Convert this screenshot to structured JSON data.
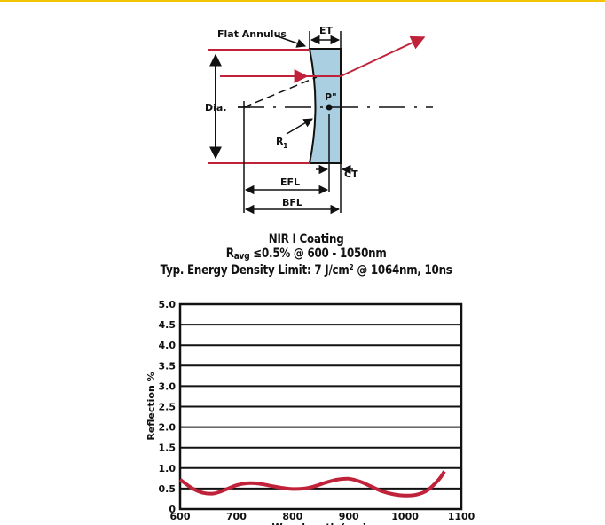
{
  "diagram": {
    "labels": {
      "flat_annulus": "Flat Annulus",
      "et": "ET",
      "dia": "Dia.",
      "p2": "P\"",
      "r1": "R",
      "r1_sub": "1",
      "ct": "CT",
      "efl": "EFL",
      "bfl": "BFL"
    },
    "colors": {
      "ray": "#c0223a",
      "lens_fill": "#a9cfe0",
      "lens_stroke": "#111111"
    }
  },
  "coating": {
    "title_line1": "NIR I Coating",
    "title_line2_prefix": "R",
    "title_line2_sub": "avg",
    "title_line2_rest": " ≤0.5% @ 600 - 1050nm",
    "title_line3": "Typ. Energy Density Limit: 7 J/cm² @ 1064nm, 10ns"
  },
  "chart_data": {
    "type": "line",
    "title": "NIR I Coating",
    "ylabel": "Reflection %",
    "xlabel": "Wavelength (nm)",
    "xlim": [
      600,
      1100
    ],
    "ylim": [
      0,
      5.0
    ],
    "x_ticks": [
      "600",
      "700",
      "800",
      "900",
      "1000",
      "1100"
    ],
    "y_ticks": [
      "0",
      "0.5",
      "1.0",
      "1.5",
      "2.0",
      "2.5",
      "3.0",
      "3.5",
      "4.0",
      "4.5",
      "5.0"
    ],
    "grid": "horizontal",
    "series_color": "#c0223a",
    "series": [
      {
        "x": [
          600,
          620,
          640,
          660,
          680,
          700,
          720,
          740,
          760,
          780,
          800,
          820,
          840,
          860,
          880,
          900,
          920,
          940,
          960,
          980,
          1000,
          1020,
          1040,
          1060,
          1070
        ],
        "y": [
          0.72,
          0.52,
          0.4,
          0.38,
          0.47,
          0.58,
          0.63,
          0.62,
          0.57,
          0.52,
          0.49,
          0.5,
          0.56,
          0.65,
          0.72,
          0.74,
          0.67,
          0.55,
          0.43,
          0.36,
          0.33,
          0.35,
          0.46,
          0.72,
          0.92
        ]
      }
    ]
  }
}
